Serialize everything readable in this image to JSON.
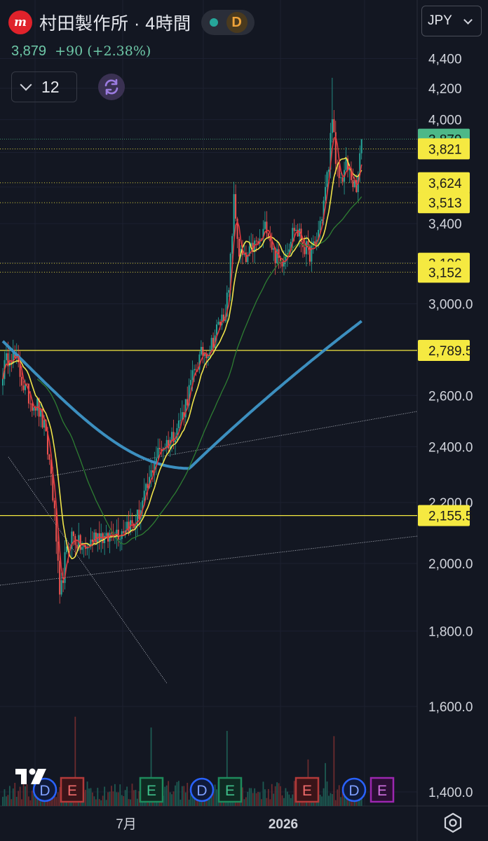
{
  "header": {
    "logo_glyph": "m",
    "title": "村田製作所 · 4時間",
    "feed_dot_color": "#26a69a",
    "data_badge": "D"
  },
  "quote": {
    "last": "3,879",
    "change": "+90 (+2.38%)"
  },
  "interval": {
    "value": "12"
  },
  "currency": {
    "label": "JPY"
  },
  "price_axis": {
    "ticks": [
      "4,400",
      "4,200",
      "4,000",
      "3,400",
      "3,000.0",
      "2,600.0",
      "2,400.0",
      "2,200.0",
      "2,000.0",
      "1,800.0",
      "1,600.0",
      "1,400.0"
    ]
  },
  "price_labels": [
    {
      "text": "3,879",
      "value": 3879,
      "kind": "last"
    },
    {
      "text": "3,821",
      "value": 3821,
      "kind": "level"
    },
    {
      "text": "3,624",
      "value": 3624,
      "kind": "level"
    },
    {
      "text": "3,513",
      "value": 3513,
      "kind": "level"
    },
    {
      "text": "3,196",
      "value": 3196,
      "kind": "level"
    },
    {
      "text": "3,152",
      "value": 3152,
      "kind": "level"
    },
    {
      "text": "2,789.5",
      "value": 2789.5,
      "kind": "line"
    },
    {
      "text": "2,155.5",
      "value": 2155.5,
      "kind": "line"
    }
  ],
  "time_axis": {
    "labels": [
      "7月",
      "2026"
    ]
  },
  "events": [
    "D",
    "E",
    "E",
    "D",
    "E",
    "E",
    "D",
    "E"
  ],
  "colors": {
    "background": "#131722",
    "ma_red": "#e0393e",
    "ma_yellow": "#f0e44a",
    "ma_green": "#2e7d32",
    "ma_blue": "#3c8fbf",
    "level_yellow": "#f5e941",
    "last_green": "#4db888",
    "event_D": "#2962ff",
    "event_E_earnings": "#b33a3a",
    "event_E_green": "#1e8a5c",
    "event_E_purple": "#9c27b0"
  },
  "chart_data": {
    "type": "candlestick",
    "symbol": "村田製作所",
    "timeframe": "4時間",
    "currency": "JPY",
    "y_axis": "log",
    "ylim": [
      1350,
      4450
    ],
    "x_labels": [
      "7月",
      "2026"
    ],
    "close_path": [
      [
        0,
        2700
      ],
      [
        4,
        2780
      ],
      [
        8,
        2740
      ],
      [
        12,
        2640
      ],
      [
        16,
        2580
      ],
      [
        20,
        2560
      ],
      [
        24,
        2470
      ],
      [
        28,
        2300
      ],
      [
        31,
        2080
      ],
      [
        33,
        1880
      ],
      [
        36,
        2010
      ],
      [
        40,
        2090
      ],
      [
        44,
        2060
      ],
      [
        48,
        2040
      ],
      [
        52,
        2080
      ],
      [
        56,
        2100
      ],
      [
        60,
        2070
      ],
      [
        64,
        2110
      ],
      [
        68,
        2100
      ],
      [
        72,
        2130
      ],
      [
        76,
        2120
      ],
      [
        80,
        2180
      ],
      [
        84,
        2250
      ],
      [
        88,
        2350
      ],
      [
        92,
        2400
      ],
      [
        96,
        2420
      ],
      [
        100,
        2460
      ],
      [
        104,
        2520
      ],
      [
        108,
        2620
      ],
      [
        112,
        2720
      ],
      [
        116,
        2780
      ],
      [
        120,
        2800
      ],
      [
        124,
        2880
      ],
      [
        128,
        2950
      ],
      [
        131,
        3050
      ],
      [
        134,
        3520
      ],
      [
        137,
        3250
      ],
      [
        141,
        3200
      ],
      [
        145,
        3280
      ],
      [
        149,
        3300
      ],
      [
        153,
        3400
      ],
      [
        157,
        3250
      ],
      [
        161,
        3200
      ],
      [
        165,
        3280
      ],
      [
        169,
        3380
      ],
      [
        173,
        3320
      ],
      [
        177,
        3240
      ],
      [
        181,
        3280
      ],
      [
        185,
        3450
      ],
      [
        189,
        3720
      ],
      [
        191,
        4060
      ],
      [
        193,
        3700
      ],
      [
        196,
        3640
      ],
      [
        199,
        3720
      ],
      [
        202,
        3660
      ],
      [
        205,
        3560
      ],
      [
        208,
        3879
      ]
    ],
    "moving_averages": [
      {
        "color": "#e0393e",
        "kind": "short"
      },
      {
        "color": "#f0e44a",
        "kind": "medium"
      },
      {
        "color": "#2e7d32",
        "kind": "long"
      },
      {
        "color": "#3c8fbf",
        "kind": "longest"
      }
    ],
    "levels": [
      3821,
      3624,
      3513,
      3196,
      3152,
      2789.5,
      2155.5
    ],
    "last": 3879
  }
}
